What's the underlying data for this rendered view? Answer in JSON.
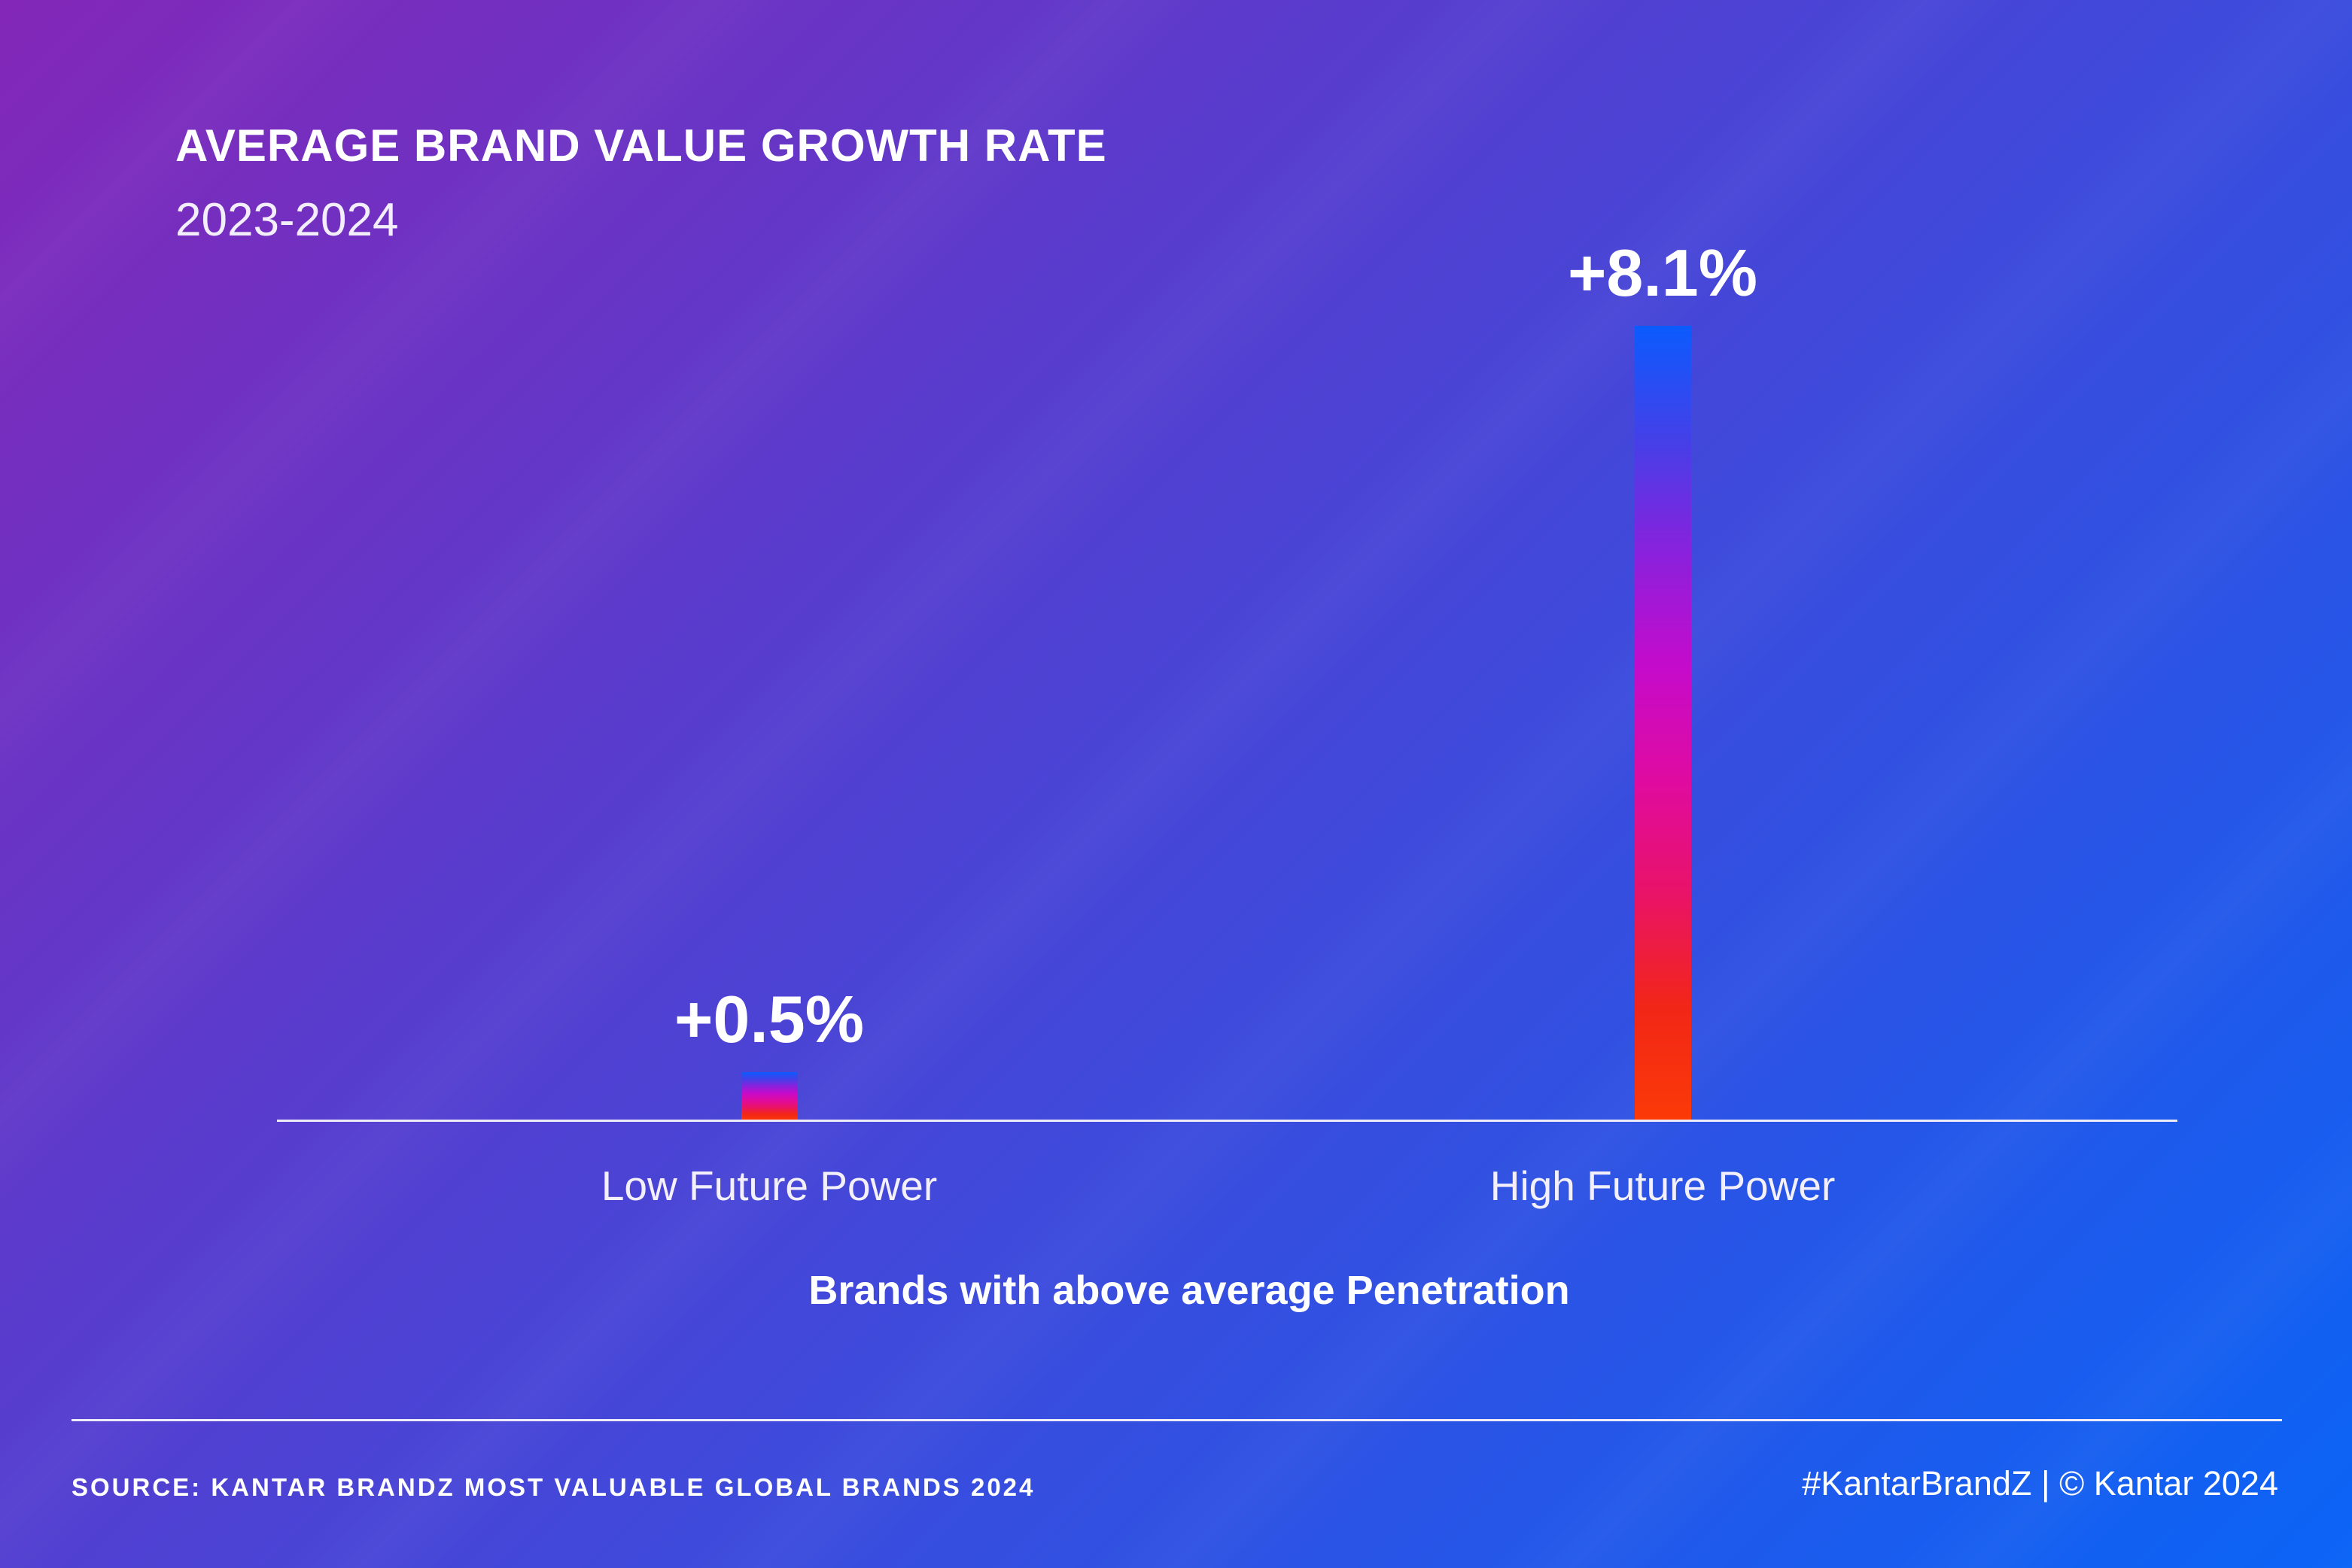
{
  "chart_data": {
    "type": "bar",
    "title": "AVERAGE BRAND VALUE GROWTH RATE",
    "subtitle": "2023-2024",
    "categories": [
      "Low Future Power",
      "High Future Power"
    ],
    "values": [
      0.5,
      8.1
    ],
    "value_labels": [
      "+0.5%",
      "+8.1%"
    ],
    "xlabel": "Brands with above average Penetration",
    "ylabel": "",
    "ylim": [
      0,
      8.1
    ],
    "grid": false,
    "legend": false
  },
  "footer": {
    "source": "SOURCE: KANTAR BRANDZ MOST VALUABLE GLOBAL BRANDS 2024",
    "credit": "#KantarBrandZ | © Kantar 2024"
  },
  "colors": {
    "background_from": "#8327B8",
    "background_to": "#0A64F6",
    "bar_gradient": [
      "#0B5BFE",
      "#4440E8",
      "#8A21DC",
      "#C50BCB",
      "#DF0BA0",
      "#E91368",
      "#F22617",
      "#FB3A07"
    ],
    "axis_line": "#EDEBF7",
    "text": "#FFFFFF"
  }
}
